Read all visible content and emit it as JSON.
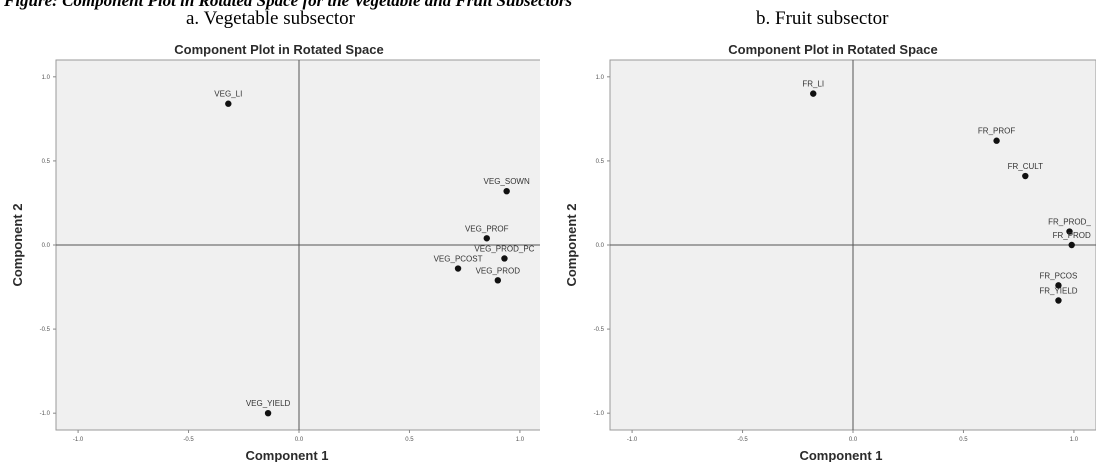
{
  "caption": "Figure: Component Plot in Rotated Space for the Vegetable and Fruit Subsectors",
  "chart_data": [
    {
      "type": "scatter",
      "panel_label": "a. Vegetable subsector",
      "title": "Component Plot in Rotated Space",
      "xlabel": "Component 1",
      "ylabel": "Component 2",
      "xlim": [
        -1.1,
        1.1
      ],
      "ylim": [
        -1.1,
        1.1
      ],
      "xticks": [
        "-1.0",
        "-0.5",
        "0.0",
        "0.5",
        "1.0"
      ],
      "yticks": [
        "1.0",
        "0.5",
        "0.0",
        "-0.5",
        "-1.0"
      ],
      "grid": false,
      "points": [
        {
          "label": "VEG_LI",
          "x": -0.32,
          "y": 0.84
        },
        {
          "label": "VEG_SOWN",
          "x": 0.94,
          "y": 0.32
        },
        {
          "label": "VEG_PROF",
          "x": 0.85,
          "y": 0.04
        },
        {
          "label": "VEG_PROD_PC",
          "x": 0.93,
          "y": -0.08
        },
        {
          "label": "VEG_PCOST",
          "x": 0.72,
          "y": -0.14
        },
        {
          "label": "VEG_PROD",
          "x": 0.9,
          "y": -0.21
        },
        {
          "label": "VEG_YIELD",
          "x": -0.14,
          "y": -1.0
        }
      ]
    },
    {
      "type": "scatter",
      "panel_label": "b. Fruit subsector",
      "title": "Component Plot in Rotated Space",
      "xlabel": "Component 1",
      "ylabel": "Component 2",
      "xlim": [
        -1.1,
        1.1
      ],
      "ylim": [
        -1.1,
        1.1
      ],
      "xticks": [
        "-1.0",
        "-0.5",
        "0.0",
        "0.5",
        "1.0"
      ],
      "yticks": [
        "1.0",
        "0.5",
        "0.0",
        "-0.5",
        "-1.0"
      ],
      "grid": false,
      "points": [
        {
          "label": "FR_LI",
          "x": -0.18,
          "y": 0.9
        },
        {
          "label": "FR_PROF",
          "x": 0.65,
          "y": 0.62
        },
        {
          "label": "FR_CULT",
          "x": 0.78,
          "y": 0.41
        },
        {
          "label": "FR_PROD_",
          "x": 0.98,
          "y": 0.08
        },
        {
          "label": "FR_PROD",
          "x": 0.99,
          "y": 0.0
        },
        {
          "label": "FR_PCOS",
          "x": 0.93,
          "y": -0.24
        },
        {
          "label": "FR_YIELD",
          "x": 0.93,
          "y": -0.33
        }
      ]
    }
  ]
}
